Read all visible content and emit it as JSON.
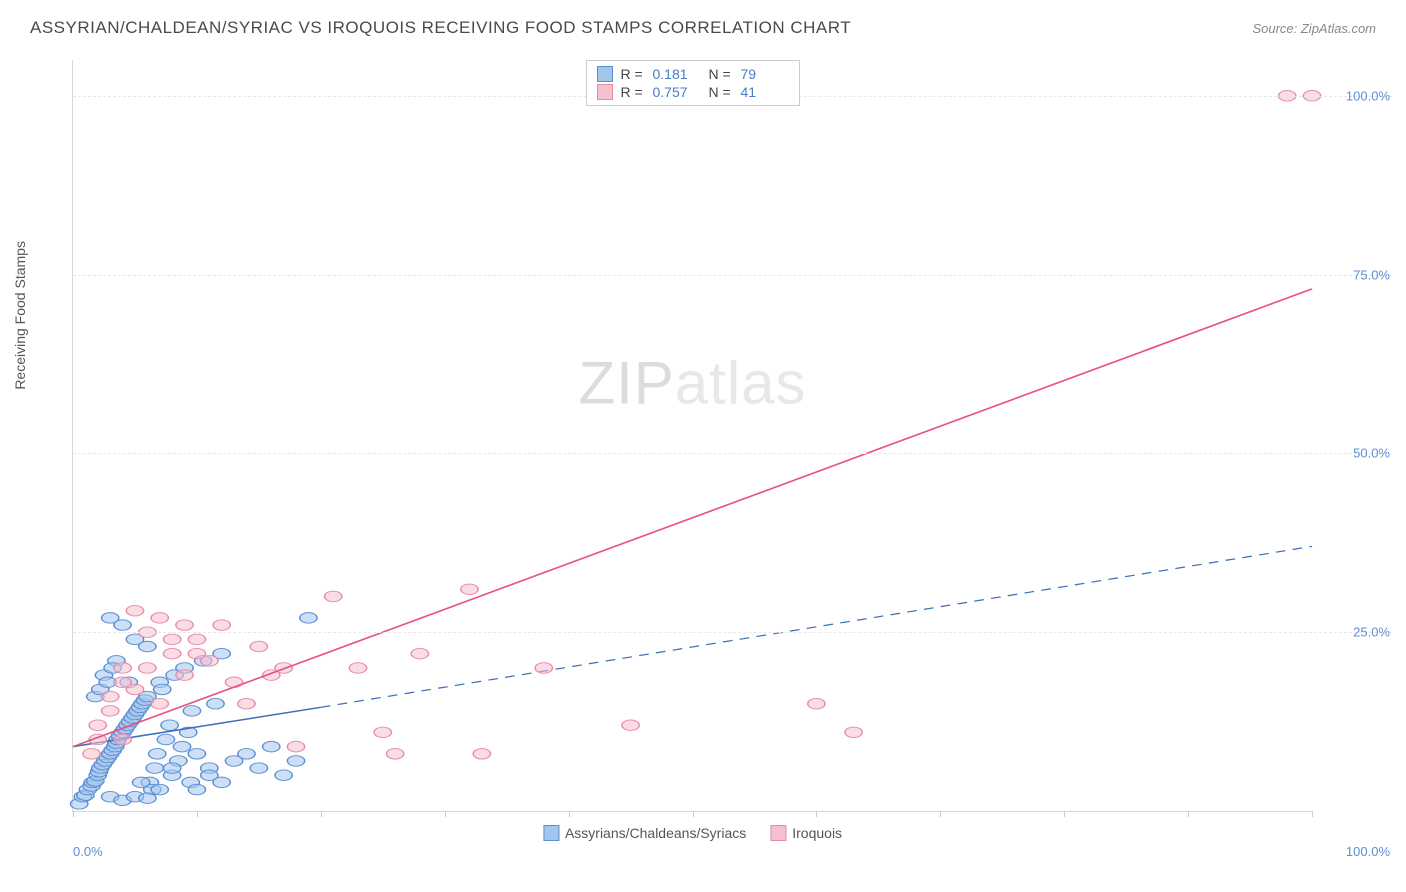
{
  "title": "ASSYRIAN/CHALDEAN/SYRIAC VS IROQUOIS RECEIVING FOOD STAMPS CORRELATION CHART",
  "source": "Source: ZipAtlas.com",
  "y_axis_label": "Receiving Food Stamps",
  "watermark_a": "ZIP",
  "watermark_b": "atlas",
  "chart": {
    "type": "scatter",
    "xlim": [
      0,
      100
    ],
    "ylim": [
      0,
      105
    ],
    "x_ticks": [
      0,
      10,
      20,
      30,
      40,
      50,
      60,
      70,
      80,
      90,
      100
    ],
    "y_gridlines": [
      25,
      50,
      75,
      100
    ],
    "x_tick_labels": {
      "0": "0.0%",
      "100": "100.0%"
    },
    "y_tick_labels": {
      "25": "25.0%",
      "50": "50.0%",
      "75": "75.0%",
      "100": "100.0%"
    },
    "background_color": "#ffffff",
    "grid_color": "#e8e8e8",
    "axis_color": "#d8d8d8",
    "tick_label_color": "#5b8fd4",
    "marker_radius": 7,
    "marker_opacity": 0.55,
    "series": [
      {
        "name": "Assyrians/Chaldeans/Syriacs",
        "fill_color": "#a4c5ec",
        "stroke_color": "#5b8fd4",
        "r": 0.181,
        "n": 79,
        "trendline": {
          "solid_from": [
            0,
            9
          ],
          "solid_to": [
            20,
            14.5
          ],
          "dash_from": [
            20,
            14.5
          ],
          "dash_to": [
            100,
            37
          ],
          "color": "#3e6fb8",
          "width": 2
        },
        "points": [
          [
            0.5,
            1
          ],
          [
            0.8,
            2
          ],
          [
            1,
            2.2
          ],
          [
            1.2,
            3
          ],
          [
            1.5,
            3.5
          ],
          [
            1.6,
            4
          ],
          [
            1.8,
            4.2
          ],
          [
            2,
            5
          ],
          [
            2.1,
            5.5
          ],
          [
            2.2,
            6
          ],
          [
            2.4,
            6.5
          ],
          [
            2.6,
            7
          ],
          [
            2.8,
            7.5
          ],
          [
            3,
            8
          ],
          [
            3.2,
            8.5
          ],
          [
            3.4,
            9
          ],
          [
            3.5,
            9.5
          ],
          [
            3.6,
            10
          ],
          [
            3.8,
            10.5
          ],
          [
            4,
            11
          ],
          [
            4.2,
            11.5
          ],
          [
            4.4,
            12
          ],
          [
            4.6,
            12.5
          ],
          [
            4.8,
            13
          ],
          [
            5,
            13.5
          ],
          [
            5.2,
            14
          ],
          [
            5.4,
            14.5
          ],
          [
            5.6,
            15
          ],
          [
            5.8,
            15.5
          ],
          [
            6,
            16
          ],
          [
            6.2,
            4
          ],
          [
            6.4,
            3
          ],
          [
            6.6,
            6
          ],
          [
            6.8,
            8
          ],
          [
            7,
            18
          ],
          [
            7.2,
            17
          ],
          [
            7.5,
            10
          ],
          [
            7.8,
            12
          ],
          [
            8,
            5
          ],
          [
            8.2,
            19
          ],
          [
            8.5,
            7
          ],
          [
            8.8,
            9
          ],
          [
            9,
            20
          ],
          [
            9.3,
            11
          ],
          [
            9.6,
            14
          ],
          [
            10,
            8
          ],
          [
            10.5,
            21
          ],
          [
            11,
            6
          ],
          [
            11.5,
            15
          ],
          [
            12,
            22
          ],
          [
            3,
            27
          ],
          [
            4,
            26
          ],
          [
            5,
            24
          ],
          [
            6,
            23
          ],
          [
            2.5,
            19
          ],
          [
            3.5,
            21
          ],
          [
            1.8,
            16
          ],
          [
            2.2,
            17
          ],
          [
            2.8,
            18
          ],
          [
            3.2,
            20
          ],
          [
            4.5,
            18
          ],
          [
            5.5,
            4
          ],
          [
            7,
            3
          ],
          [
            8,
            6
          ],
          [
            9.5,
            4
          ],
          [
            10,
            3
          ],
          [
            11,
            5
          ],
          [
            12,
            4
          ],
          [
            13,
            7
          ],
          [
            14,
            8
          ],
          [
            15,
            6
          ],
          [
            16,
            9
          ],
          [
            17,
            5
          ],
          [
            18,
            7
          ],
          [
            3,
            2
          ],
          [
            4,
            1.5
          ],
          [
            5,
            2
          ],
          [
            6,
            1.8
          ],
          [
            19,
            27
          ]
        ]
      },
      {
        "name": "Iroquois",
        "fill_color": "#f5c0cf",
        "stroke_color": "#e88ba6",
        "r": 0.757,
        "n": 41,
        "trendline": {
          "solid_from": [
            0,
            9
          ],
          "solid_to": [
            100,
            73
          ],
          "color": "#e75480",
          "width": 2
        },
        "points": [
          [
            2,
            10
          ],
          [
            3,
            14
          ],
          [
            4,
            18
          ],
          [
            5,
            17
          ],
          [
            6,
            20
          ],
          [
            7,
            15
          ],
          [
            8,
            22
          ],
          [
            9,
            19
          ],
          [
            10,
            24
          ],
          [
            11,
            21
          ],
          [
            12,
            26
          ],
          [
            13,
            18
          ],
          [
            14,
            15
          ],
          [
            15,
            23
          ],
          [
            16,
            19
          ],
          [
            17,
            20
          ],
          [
            18,
            9
          ],
          [
            5,
            28
          ],
          [
            7,
            27
          ],
          [
            9,
            26
          ],
          [
            6,
            25
          ],
          [
            8,
            24
          ],
          [
            10,
            22
          ],
          [
            4,
            20
          ],
          [
            3,
            16
          ],
          [
            2,
            12
          ],
          [
            1.5,
            8
          ],
          [
            4,
            10
          ],
          [
            21,
            30
          ],
          [
            32,
            31
          ],
          [
            23,
            20
          ],
          [
            25,
            11
          ],
          [
            26,
            8
          ],
          [
            28,
            22
          ],
          [
            33,
            8
          ],
          [
            38,
            20
          ],
          [
            45,
            12
          ],
          [
            60,
            15
          ],
          [
            63,
            11
          ],
          [
            98,
            100
          ],
          [
            100,
            100
          ]
        ]
      }
    ]
  },
  "stats_box": {
    "rows": [
      {
        "swatch_fill": "#a4c5ec",
        "swatch_border": "#5b8fd4",
        "r_label": "R =",
        "r_val": "0.181",
        "n_label": "N =",
        "n_val": "79"
      },
      {
        "swatch_fill": "#f5c0cf",
        "swatch_border": "#e88ba6",
        "r_label": "R =",
        "r_val": "0.757",
        "n_label": "N =",
        "n_val": "41"
      }
    ]
  },
  "bottom_legend": [
    {
      "swatch_fill": "#a4c5ec",
      "swatch_border": "#5b8fd4",
      "label": "Assyrians/Chaldeans/Syriacs"
    },
    {
      "swatch_fill": "#f5c0cf",
      "swatch_border": "#e88ba6",
      "label": "Iroquois"
    }
  ]
}
